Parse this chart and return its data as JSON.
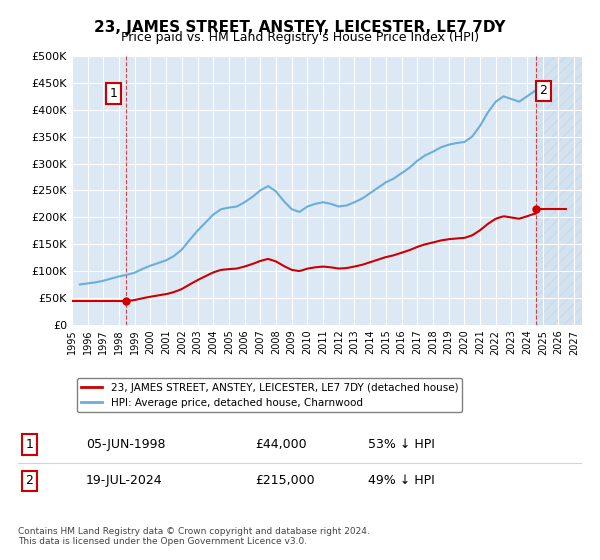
{
  "title": "23, JAMES STREET, ANSTEY, LEICESTER, LE7 7DY",
  "subtitle": "Price paid vs. HM Land Registry's House Price Index (HPI)",
  "legend_entry1": "23, JAMES STREET, ANSTEY, LEICESTER, LE7 7DY (detached house)",
  "legend_entry2": "HPI: Average price, detached house, Charnwood",
  "annotation1_label": "1",
  "annotation1_date": "05-JUN-1998",
  "annotation1_price": "£44,000",
  "annotation1_hpi": "53% ↓ HPI",
  "annotation2_label": "2",
  "annotation2_date": "19-JUL-2024",
  "annotation2_price": "£215,000",
  "annotation2_hpi": "49% ↓ HPI",
  "footer": "Contains HM Land Registry data © Crown copyright and database right 2024.\nThis data is licensed under the Open Government Licence v3.0.",
  "hpi_color": "#6baed6",
  "price_color": "#cc0000",
  "annotation_box_color": "#cc0000",
  "background_color": "#dce9f5",
  "future_hatch_color": "#b0c8e0",
  "ylim": [
    0,
    500000
  ],
  "xlim_start": 1995.0,
  "xlim_end": 2027.5
}
